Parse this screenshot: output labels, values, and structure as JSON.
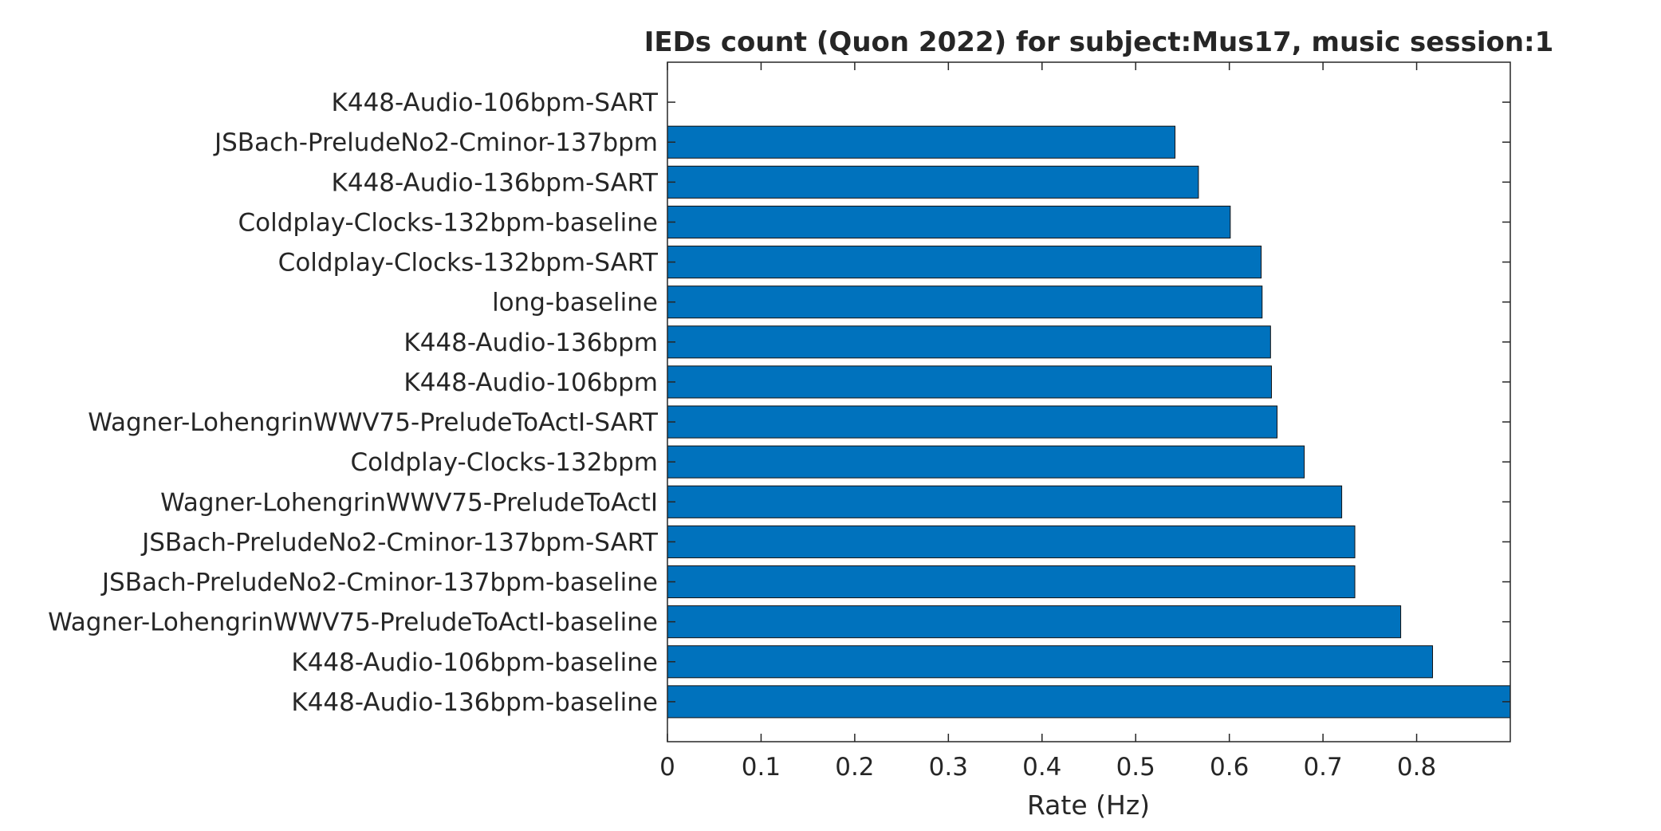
{
  "chart_data": {
    "type": "bar",
    "orientation": "horizontal",
    "title": "IEDs count (Quon 2022) for subject:Mus17, music session:1",
    "xlabel": "Rate (Hz)",
    "ylabel": "",
    "xlim": [
      0,
      0.9
    ],
    "xticks": [
      "0",
      "0.1",
      "0.2",
      "0.3",
      "0.4",
      "0.5",
      "0.6",
      "0.7",
      "0.8"
    ],
    "grid": false,
    "bar_color": "#0072BD",
    "categories": [
      "K448-Audio-106bpm-SART",
      "JSBach-PreludeNo2-Cminor-137bpm",
      "K448-Audio-136bpm-SART",
      "Coldplay-Clocks-132bpm-baseline",
      "Coldplay-Clocks-132bpm-SART",
      "long-baseline",
      "K448-Audio-136bpm",
      "K448-Audio-106bpm",
      "Wagner-LohengrinWWV75-PreludeToActI-SART",
      "Coldplay-Clocks-132bpm",
      "Wagner-LohengrinWWV75-PreludeToActI",
      "JSBach-PreludeNo2-Cminor-137bpm-SART",
      "JSBach-PreludeNo2-Cminor-137bpm-baseline",
      "Wagner-LohengrinWWV75-PreludeToActI-baseline",
      "K448-Audio-106bpm-baseline",
      "K448-Audio-136bpm-baseline"
    ],
    "values": [
      0,
      0.542,
      0.567,
      0.601,
      0.634,
      0.635,
      0.644,
      0.645,
      0.651,
      0.68,
      0.72,
      0.734,
      0.734,
      0.783,
      0.817,
      0.9
    ]
  }
}
